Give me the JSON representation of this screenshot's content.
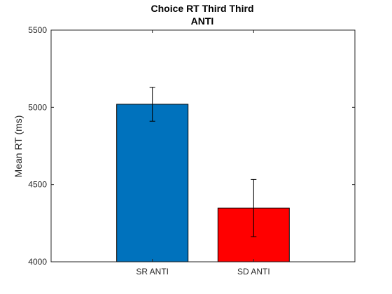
{
  "chart_data": {
    "type": "bar",
    "title": "Choice RT Third Third",
    "subtitle": "ANTI",
    "xlabel": "",
    "ylabel": "Mean RT (ms)",
    "ylim": [
      4000,
      5500
    ],
    "yticks": [
      4000,
      4500,
      5000,
      5500
    ],
    "ytick_labels": [
      "4000",
      "4500",
      "5000",
      "5500"
    ],
    "grid": false,
    "categories": [
      "SR ANTI",
      "SD ANTI"
    ],
    "values": [
      5020,
      4348
    ],
    "errors": [
      110,
      185
    ],
    "colors": [
      "#0072BD",
      "#FF0000"
    ]
  }
}
